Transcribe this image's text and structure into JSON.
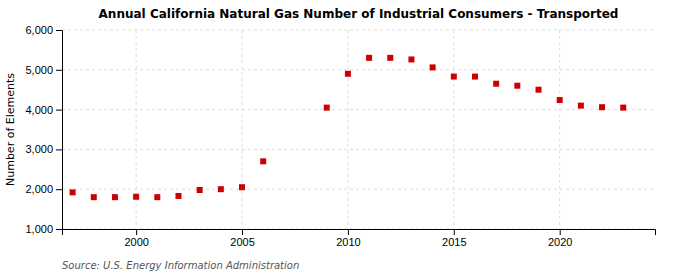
{
  "chart_data": {
    "type": "scatter",
    "title": "Annual California Natural Gas Number of Industrial Consumers - Transported",
    "ylabel": "Number of Elements",
    "source": "Source: U.S. Energy Information Administration",
    "x": [
      1997,
      1998,
      1999,
      2000,
      2001,
      2002,
      2003,
      2004,
      2005,
      2006,
      2009,
      2010,
      2011,
      2012,
      2013,
      2014,
      2015,
      2016,
      2017,
      2018,
      2019,
      2020,
      2021,
      2022,
      2023
    ],
    "values": [
      1920,
      1800,
      1800,
      1810,
      1800,
      1830,
      1980,
      2000,
      2050,
      2700,
      4050,
      4900,
      5300,
      5300,
      5260,
      5060,
      4830,
      4830,
      4650,
      4600,
      4500,
      4240,
      4100,
      4060,
      4050
    ],
    "color": "#cc0000",
    "marker": "square",
    "xlim": [
      1996.5,
      2024.5
    ],
    "ylim": [
      1000,
      6000
    ],
    "xticks": [
      2000,
      2005,
      2010,
      2015,
      2020
    ],
    "yticks": [
      {
        "value": 1000,
        "label": "1,000"
      },
      {
        "value": 2000,
        "label": "2,000"
      },
      {
        "value": 3000,
        "label": "3,000"
      },
      {
        "value": 4000,
        "label": "4,000"
      },
      {
        "value": 5000,
        "label": "5,000"
      },
      {
        "value": 6000,
        "label": "6,000"
      }
    ],
    "grid": true
  }
}
